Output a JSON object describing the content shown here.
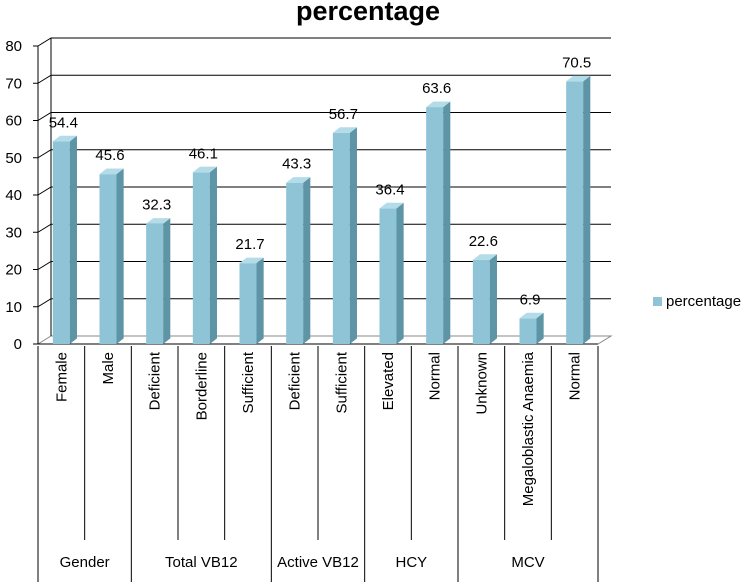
{
  "chart_data": {
    "type": "bar",
    "title": "percentage",
    "xlabel": "",
    "ylabel": "",
    "ylim": [
      0,
      80
    ],
    "yticks": [
      0,
      10,
      20,
      30,
      40,
      50,
      60,
      70,
      80
    ],
    "grid": true,
    "legend_position": "right",
    "categories": [
      "Female",
      "Male",
      "Deficient",
      "Borderline",
      "Sufficient",
      "Deficient",
      "Sufficient",
      "Elevated",
      "Normal",
      "Unknown",
      "Megaloblastic Anaemia",
      "Normal"
    ],
    "groups": [
      {
        "label": "Gender",
        "count": 2
      },
      {
        "label": "Total VB12",
        "count": 3
      },
      {
        "label": "Active VB12",
        "count": 2
      },
      {
        "label": "HCY",
        "count": 2
      },
      {
        "label": "MCV",
        "count": 3
      }
    ],
    "series": [
      {
        "name": "percentage",
        "values": [
          54.4,
          45.6,
          32.3,
          46.1,
          21.7,
          43.3,
          56.7,
          36.4,
          63.6,
          22.6,
          6.9,
          70.5
        ],
        "labels": [
          "54.4",
          "45.6",
          "32.3",
          "46.1",
          "21.7",
          "43.3",
          "56.7",
          "36.4",
          "63.6",
          "22.6",
          "6.9",
          "70.5"
        ]
      }
    ],
    "colors": {
      "bar_front": "#8EC4D6",
      "bar_side": "#5E95A6",
      "bar_top": "#B4DCE8",
      "grid": "#000000",
      "wall": "#ffffff"
    }
  }
}
